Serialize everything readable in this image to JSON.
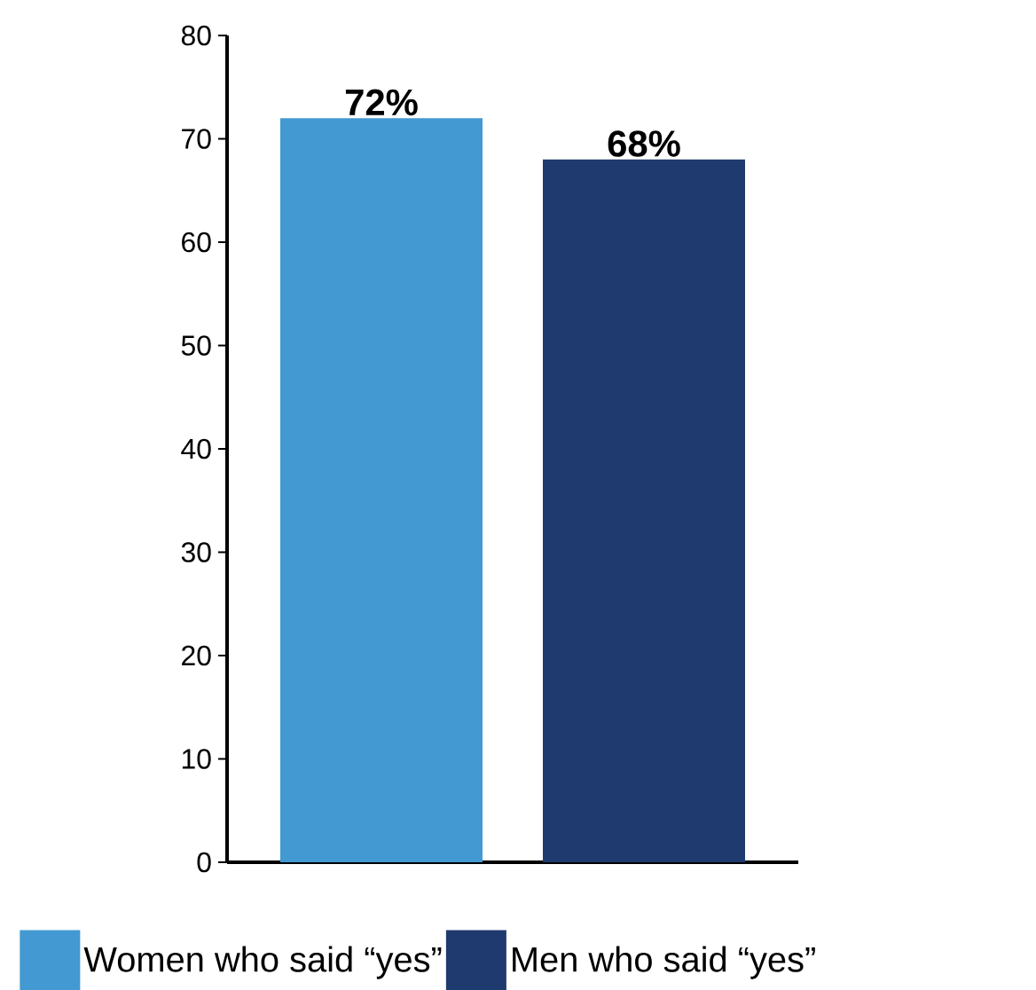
{
  "chart_data": {
    "type": "bar",
    "categories": [
      null
    ],
    "series": [
      {
        "name": "Women who said “yes”",
        "color": "#4399d1",
        "values": [
          72
        ],
        "value_labels": [
          "72%"
        ]
      },
      {
        "name": "Men who said “yes”",
        "color": "#1f3a6e",
        "values": [
          68
        ],
        "value_labels": [
          "68%"
        ]
      }
    ],
    "ylim": [
      0,
      80
    ],
    "yticks": [
      0,
      10,
      20,
      30,
      40,
      50,
      60,
      70,
      80
    ],
    "legend": "bottom"
  }
}
